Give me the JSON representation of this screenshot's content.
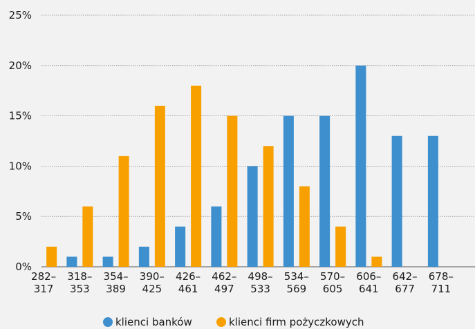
{
  "chart_data": {
    "type": "bar",
    "categories": [
      [
        "282–",
        "317"
      ],
      [
        "318–",
        "353"
      ],
      [
        "354–",
        "389"
      ],
      [
        "390–",
        "425"
      ],
      [
        "426–",
        "461"
      ],
      [
        "462–",
        "497"
      ],
      [
        "498–",
        "533"
      ],
      [
        "534–",
        "569"
      ],
      [
        "570–",
        "605"
      ],
      [
        "606–",
        "641"
      ],
      [
        "642–",
        "677"
      ],
      [
        "678–",
        "711"
      ]
    ],
    "series": [
      {
        "name": "klienci banków",
        "color": "#3d8fce",
        "values": [
          0,
          1,
          1,
          2,
          4,
          6,
          10,
          15,
          15,
          20,
          13,
          13
        ]
      },
      {
        "name": "klienci firm pożyczkowych",
        "color": "#f7a000",
        "values": [
          2,
          6,
          11,
          16,
          18,
          15,
          12,
          8,
          4,
          1,
          0,
          0
        ]
      }
    ],
    "yticks": [
      "0%",
      "5%",
      "10%",
      "15%",
      "20%",
      "25%"
    ],
    "ylim": [
      0,
      25
    ],
    "grid": true,
    "legend_position": "bottom-center",
    "title": "",
    "xlabel": "",
    "ylabel": ""
  }
}
